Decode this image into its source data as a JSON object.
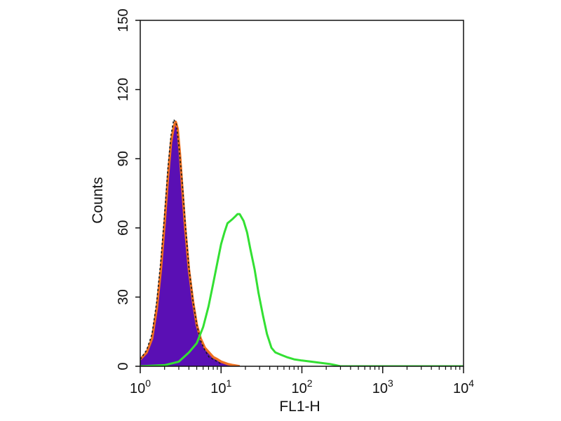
{
  "chart_data": {
    "type": "area",
    "title": "",
    "xlabel": "FL1-H",
    "ylabel": "Counts",
    "x_scale": "log",
    "xlim": [
      1,
      10000
    ],
    "ylim": [
      0,
      150
    ],
    "yticks": [
      0,
      30,
      60,
      90,
      120,
      150
    ],
    "xticks": [
      {
        "value": 1,
        "base": "10",
        "exp": "0"
      },
      {
        "value": 10,
        "base": "10",
        "exp": "1"
      },
      {
        "value": 100,
        "base": "10",
        "exp": "2"
      },
      {
        "value": 1000,
        "base": "10",
        "exp": "3"
      },
      {
        "value": 10000,
        "base": "10",
        "exp": "4"
      }
    ],
    "grid": false,
    "legend": "none",
    "series": [
      {
        "style": "filled",
        "fill": "#5a0fb4",
        "stroke": "#f07020",
        "x": [
          1.0,
          1.2,
          1.4,
          1.6,
          1.8,
          2.0,
          2.2,
          2.4,
          2.6,
          2.75,
          2.9,
          3.1,
          3.3,
          3.6,
          4.0,
          4.5,
          5.0,
          5.6,
          6.3,
          7.1,
          8.0,
          9.0,
          10.0,
          12.0,
          14.0,
          17.0
        ],
        "y": [
          3,
          6,
          12,
          25,
          42,
          62,
          82,
          97,
          104,
          106,
          103,
          92,
          78,
          60,
          42,
          28,
          18,
          12,
          8,
          6,
          4,
          3,
          2,
          1,
          0.5,
          0
        ]
      },
      {
        "style": "outline",
        "stroke": "#1a1a1a",
        "dashed": true,
        "x": [
          1.0,
          1.2,
          1.4,
          1.6,
          1.8,
          2.0,
          2.2,
          2.4,
          2.6,
          2.8,
          3.0,
          3.3,
          3.6,
          4.0,
          4.5,
          5.0,
          5.6,
          6.3,
          7.1,
          8.0,
          9.0,
          10.0
        ],
        "y": [
          3,
          7,
          14,
          28,
          46,
          66,
          86,
          100,
          107,
          105,
          96,
          80,
          62,
          43,
          28,
          18,
          11,
          7,
          4,
          3,
          2,
          1
        ]
      },
      {
        "style": "outline",
        "stroke": "#33e033",
        "x": [
          1.0,
          2.0,
          3.0,
          4.0,
          5.0,
          6.0,
          7.0,
          8.0,
          9.0,
          10.0,
          11.0,
          12.0,
          13.0,
          14.0,
          15.0,
          16.0,
          17.0,
          19.0,
          21.0,
          23.0,
          26.0,
          29.0,
          33.0,
          37.0,
          42.0,
          47.0,
          55.0,
          65.0,
          80.0,
          100.0,
          130.0,
          170.0,
          220.0,
          260.0,
          300.0,
          1000.0,
          10000.0
        ],
        "y": [
          0,
          0.5,
          2,
          6,
          10,
          17,
          26,
          36,
          45,
          53,
          58,
          62,
          63,
          64,
          65,
          66,
          66,
          63,
          58,
          51,
          42,
          32,
          22,
          14,
          8,
          6,
          5,
          4,
          3,
          2.5,
          2,
          1.5,
          1,
          0.5,
          0,
          0,
          0
        ]
      }
    ]
  }
}
